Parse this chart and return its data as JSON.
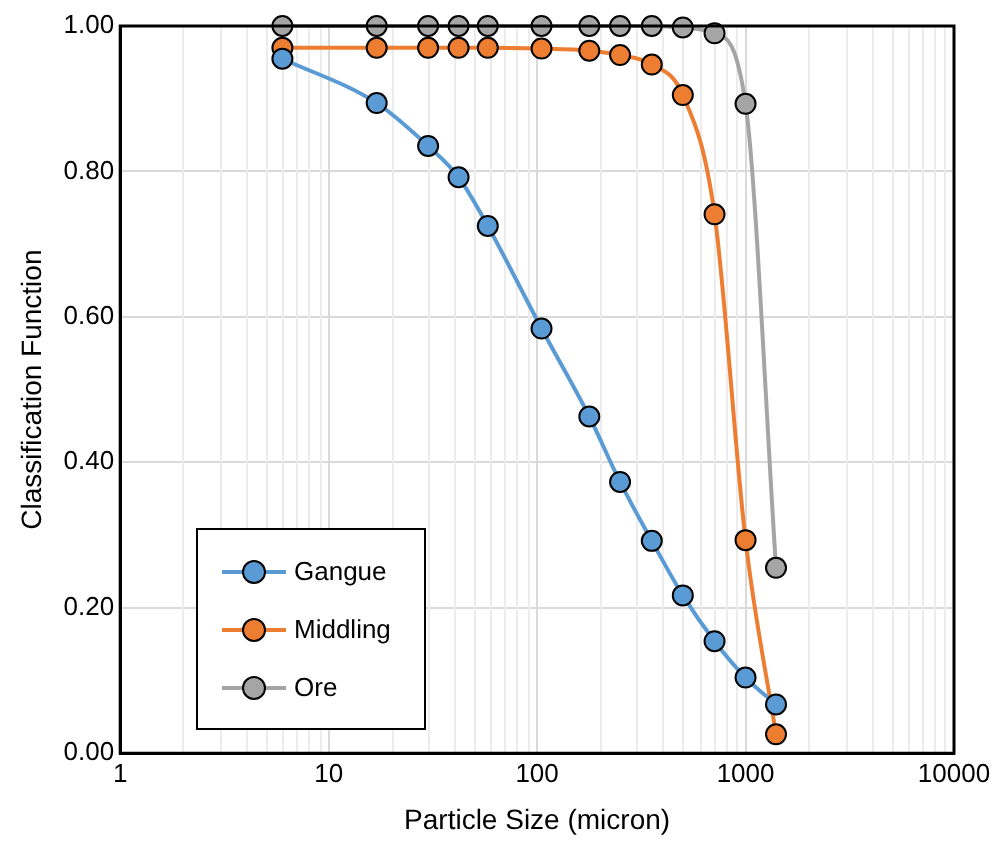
{
  "chart_data": {
    "type": "line",
    "xlabel": "Particle Size (micron)",
    "ylabel": "Classification Function",
    "x": [
      6,
      17,
      30,
      42,
      58,
      105,
      178,
      250,
      355,
      500,
      710,
      1000,
      1400
    ],
    "series": [
      {
        "name": "Gangue",
        "color": "#5b9bd5",
        "values": [
          0.955,
          0.894,
          0.835,
          0.792,
          0.725,
          0.584,
          0.463,
          0.373,
          0.292,
          0.217,
          0.154,
          0.104,
          0.067
        ]
      },
      {
        "name": "Middling",
        "color": "#ed7d31",
        "values": [
          0.97,
          0.97,
          0.97,
          0.97,
          0.97,
          0.969,
          0.966,
          0.96,
          0.947,
          0.905,
          0.741,
          0.293,
          0.026
        ]
      },
      {
        "name": "Ore",
        "color": "#a5a5a5",
        "values": [
          1.0,
          1.0,
          1.0,
          1.0,
          1.0,
          1.0,
          1.0,
          1.0,
          1.0,
          0.998,
          0.99,
          0.893,
          0.255
        ]
      }
    ],
    "log": "x",
    "xlim": [
      1,
      10000
    ],
    "xticks": [
      1,
      10,
      100,
      1000,
      10000
    ],
    "ylim": [
      0,
      1
    ],
    "yticks": [
      {
        "value": 0,
        "label": "0.00"
      },
      {
        "value": 0.2,
        "label": "0.20"
      },
      {
        "value": 0.4,
        "label": "0.40"
      },
      {
        "value": 0.6,
        "label": "0.60"
      },
      {
        "value": 0.8,
        "label": "0.80"
      },
      {
        "value": 1,
        "label": "1.00"
      }
    ],
    "grid": true,
    "legend": "bottom left",
    "marker": "circle",
    "line_style": "solid"
  }
}
